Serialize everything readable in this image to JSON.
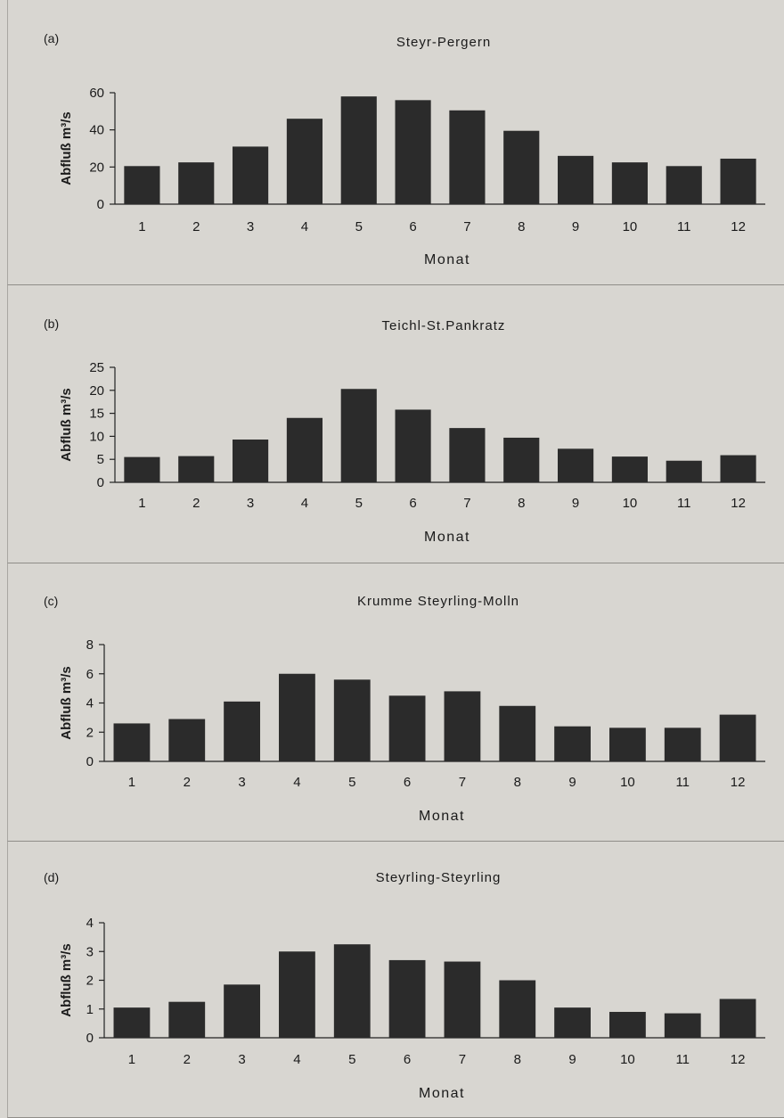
{
  "chart_data": [
    {
      "type": "bar",
      "panel_label": "(a)",
      "title": "Steyr-Pergern",
      "xlabel": "Monat",
      "ylabel": "Abfluß m³/s",
      "categories": [
        "1",
        "2",
        "3",
        "4",
        "5",
        "6",
        "7",
        "8",
        "9",
        "10",
        "11",
        "12"
      ],
      "values": [
        20.5,
        22.5,
        31,
        46,
        58,
        56,
        50.5,
        39.5,
        26,
        22.5,
        20.5,
        24.5
      ],
      "ylim": [
        0,
        60
      ],
      "yticks": [
        "0",
        "20",
        "40",
        "60"
      ],
      "bar_color": "#2b2b2b"
    },
    {
      "type": "bar",
      "panel_label": "(b)",
      "title": "Teichl-St.Pankratz",
      "xlabel": "Monat",
      "ylabel": "Abfluß m³/s",
      "categories": [
        "1",
        "2",
        "3",
        "4",
        "5",
        "6",
        "7",
        "8",
        "9",
        "10",
        "11",
        "12"
      ],
      "values": [
        5.5,
        5.7,
        9.3,
        14,
        20.3,
        15.8,
        11.8,
        9.7,
        7.3,
        5.6,
        4.7,
        5.9
      ],
      "ylim": [
        0,
        25
      ],
      "yticks": [
        "0",
        "5",
        "10",
        "15",
        "20",
        "25"
      ],
      "bar_color": "#2b2b2b"
    },
    {
      "type": "bar",
      "panel_label": "(c)",
      "title": "Krumme Steyrling-Molln",
      "xlabel": "Monat",
      "ylabel": "Abfluß m³/s",
      "categories": [
        "1",
        "2",
        "3",
        "4",
        "5",
        "6",
        "7",
        "8",
        "9",
        "10",
        "11",
        "12"
      ],
      "values": [
        2.6,
        2.9,
        4.1,
        6.0,
        5.6,
        4.5,
        4.8,
        3.8,
        2.4,
        2.3,
        2.3,
        3.2
      ],
      "ylim": [
        0,
        8
      ],
      "yticks": [
        "0",
        "2",
        "4",
        "6",
        "8"
      ],
      "bar_color": "#2b2b2b"
    },
    {
      "type": "bar",
      "panel_label": "(d)",
      "title": "Steyrling-Steyrling",
      "xlabel": "Monat",
      "ylabel": "Abfluß m³/s",
      "categories": [
        "1",
        "2",
        "3",
        "4",
        "5",
        "6",
        "7",
        "8",
        "9",
        "10",
        "11",
        "12"
      ],
      "values": [
        1.05,
        1.25,
        1.85,
        3.0,
        3.25,
        2.7,
        2.65,
        2.0,
        1.05,
        0.9,
        0.85,
        1.35
      ],
      "ylim": [
        0,
        4
      ],
      "yticks": [
        "0",
        "1",
        "2",
        "3",
        "4"
      ],
      "bar_color": "#2b2b2b"
    }
  ]
}
